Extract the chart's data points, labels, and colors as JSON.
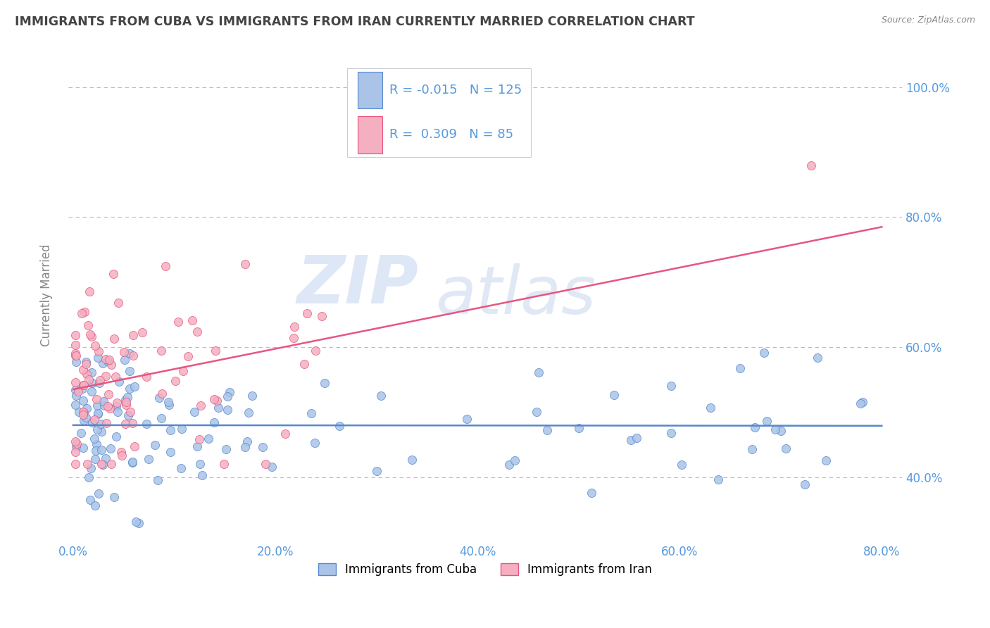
{
  "title": "IMMIGRANTS FROM CUBA VS IMMIGRANTS FROM IRAN CURRENTLY MARRIED CORRELATION CHART",
  "source": "Source: ZipAtlas.com",
  "ylabel": "Currently Married",
  "legend_label1": "Immigrants from Cuba",
  "legend_label2": "Immigrants from Iran",
  "R1": -0.015,
  "N1": 125,
  "R2": 0.309,
  "N2": 85,
  "color1": "#aac4e8",
  "color2": "#f4afc0",
  "line_color1": "#5588cc",
  "line_color2": "#e85580",
  "xlim": [
    -0.005,
    0.82
  ],
  "ylim": [
    0.3,
    1.06
  ],
  "y_ticks": [
    0.4,
    0.6,
    0.8,
    1.0
  ],
  "y_tick_labels": [
    "40.0%",
    "60.0%",
    "80.0%",
    "100.0%"
  ],
  "x_ticks": [
    0.0,
    0.2,
    0.4,
    0.6,
    0.8
  ],
  "x_tick_labels": [
    "0.0%",
    "20.0%",
    "40.0%",
    "60.0%",
    "80.0%"
  ],
  "watermark_zip": "ZIP",
  "watermark_atlas": "atlas",
  "background_color": "#ffffff",
  "grid_color": "#bbbbbb",
  "title_color": "#444444",
  "tick_color": "#5599dd",
  "cuba_trend_x": [
    0.0,
    0.8
  ],
  "cuba_trend_y": [
    0.48,
    0.479
  ],
  "iran_trend_x": [
    0.0,
    0.8
  ],
  "iran_trend_y": [
    0.535,
    0.785
  ]
}
